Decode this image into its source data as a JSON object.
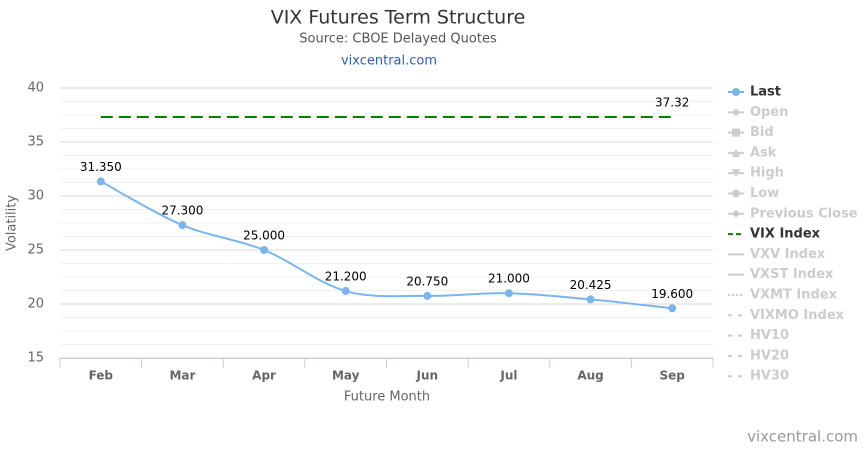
{
  "chart_data": {
    "type": "line",
    "title": "VIX Futures Term Structure",
    "subtitle": "Source: CBOE Delayed Quotes",
    "link": "vixcentral.com",
    "credits": "vixcentral.com",
    "y_axis_label": "Volatility",
    "x_axis_label": "Future Month",
    "categories": [
      "Feb",
      "Mar",
      "Apr",
      "May",
      "Jun",
      "Jul",
      "Aug",
      "Sep"
    ],
    "ylim": [
      15,
      40
    ],
    "yticks": [
      15,
      20,
      25,
      30,
      35,
      40
    ],
    "grid": true,
    "minor_grid_subdivisions": 4,
    "legend": "right",
    "series": [
      {
        "name": "Last",
        "color": "#7cb5ec",
        "visible": true,
        "marker": "circle",
        "smooth": true,
        "values": [
          31.35,
          27.3,
          25,
          21.2,
          20.75,
          21,
          20.425,
          19.6
        ],
        "value_labels": [
          "31.350",
          "27.300",
          "25.000",
          "21.200",
          "20.750",
          "21.000",
          "20.425",
          "19.600"
        ]
      },
      {
        "name": "Open",
        "visible": false,
        "marker": "diamond"
      },
      {
        "name": "Bid",
        "visible": false,
        "marker": "square"
      },
      {
        "name": "Ask",
        "visible": false,
        "marker": "triangle"
      },
      {
        "name": "High",
        "visible": false,
        "marker": "triangle-down"
      },
      {
        "name": "Low",
        "visible": false,
        "marker": "circle"
      },
      {
        "name": "Previous Close",
        "visible": false,
        "marker": "diamond"
      },
      {
        "name": "VIX Index",
        "color": "#008000",
        "visible": true,
        "dash": "12,6",
        "values": [
          37.32,
          37.32,
          37.32,
          37.32,
          37.32,
          37.32,
          37.32,
          37.32
        ],
        "value_labels": [
          null,
          null,
          null,
          null,
          null,
          null,
          null,
          "37.32"
        ]
      },
      {
        "name": "VXV Index",
        "visible": false
      },
      {
        "name": "VXST Index",
        "visible": false
      },
      {
        "name": "VXMT Index",
        "visible": false,
        "dash": "2,2"
      },
      {
        "name": "VIXMO Index",
        "visible": false,
        "dash": "6,4"
      },
      {
        "name": "HV10",
        "visible": false,
        "dash": "6,4"
      },
      {
        "name": "HV20",
        "visible": false,
        "dash": "6,4"
      },
      {
        "name": "HV30",
        "visible": false,
        "dash": "6,4"
      }
    ]
  }
}
